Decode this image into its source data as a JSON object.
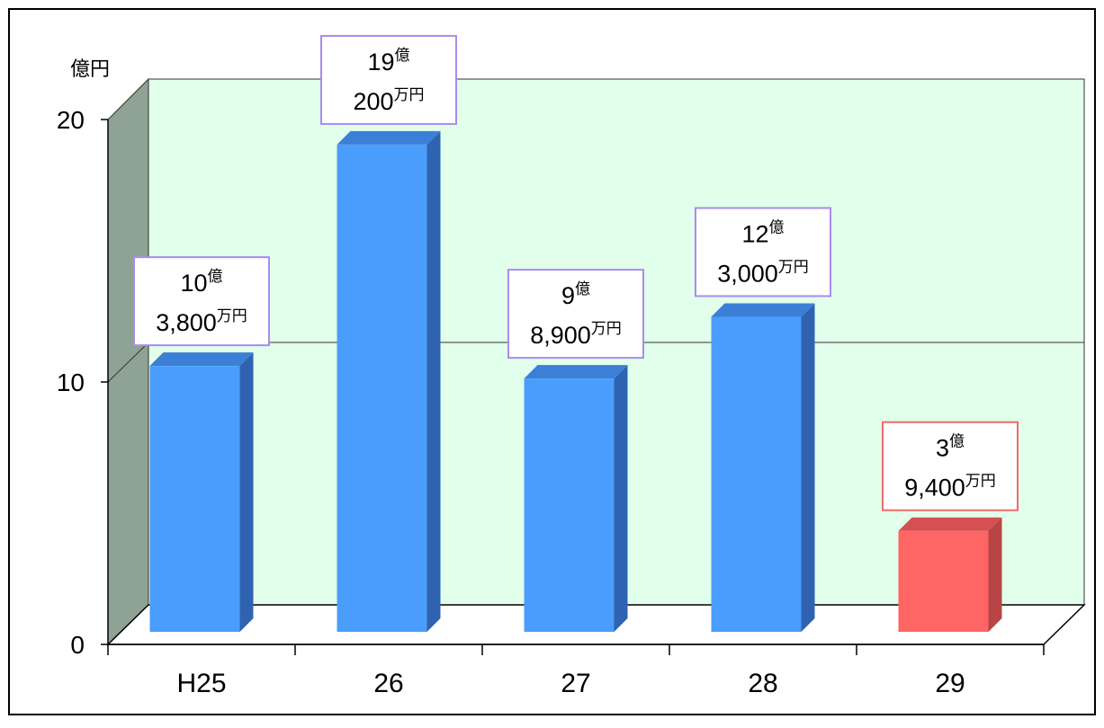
{
  "chart_data": {
    "type": "bar",
    "ylabel": "億円",
    "ylim": [
      0,
      20
    ],
    "yticks": [
      0,
      10,
      20
    ],
    "grid": true,
    "categories": [
      "H25",
      "26",
      "27",
      "28",
      "29"
    ],
    "values": [
      10.38,
      19.02,
      9.89,
      12.3,
      3.94
    ],
    "labels": [
      {
        "oku": "10",
        "man": "3,800",
        "oku_unit": "億",
        "man_unit": "万円"
      },
      {
        "oku": "19",
        "man": "200",
        "oku_unit": "億",
        "man_unit": "万円"
      },
      {
        "oku": "9",
        "man": "8,900",
        "oku_unit": "億",
        "man_unit": "万円"
      },
      {
        "oku": "12",
        "man": "3,000",
        "oku_unit": "億",
        "man_unit": "万円"
      },
      {
        "oku": "3",
        "man": "9,400",
        "oku_unit": "億",
        "man_unit": "万円"
      }
    ],
    "highlight_index": 4,
    "colors": {
      "bar": "#4a9dfb",
      "bar_top": "#3b7fd6",
      "bar_side": "#2f63b1",
      "highlight": "#ff6565",
      "highlight_top": "#d55050",
      "highlight_side": "#b84545",
      "back_wall": "#e2ffec",
      "side_wall": "#8fa394",
      "label_border": "#a98bf0",
      "highlight_label_border": "#f06b6b"
    }
  }
}
